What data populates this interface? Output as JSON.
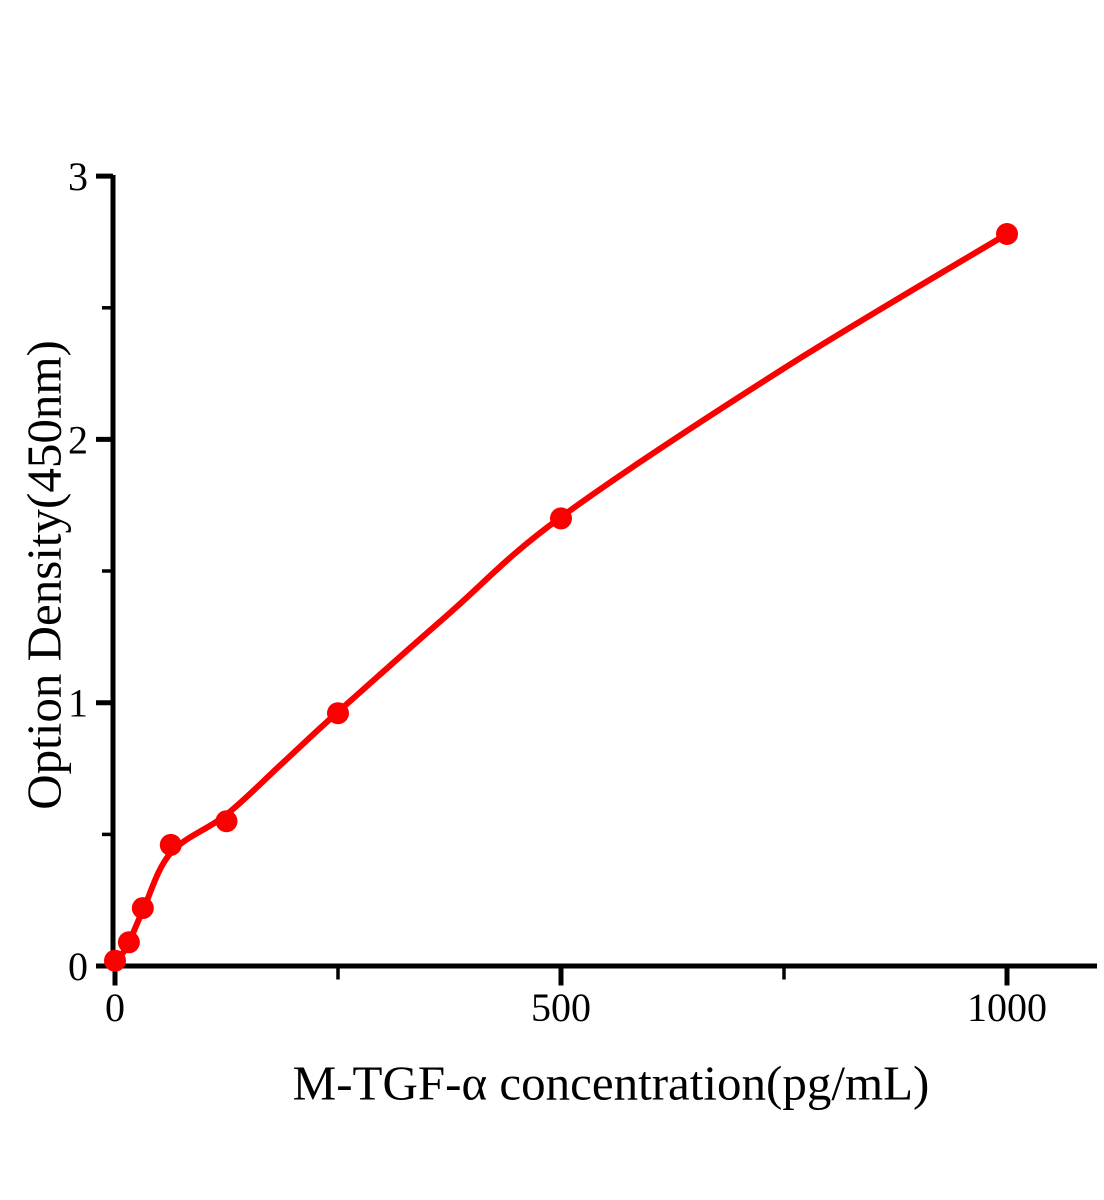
{
  "figure": {
    "background_color": "#ffffff",
    "axis_color": "#000000",
    "accent_color": "#fa0000"
  },
  "chart_data": {
    "type": "scatter",
    "title": "",
    "xlabel": "M-TGF-α concentration(pg/mL)",
    "ylabel": "Option Density(450nm)",
    "xlim": [
      0,
      1103
    ],
    "ylim": [
      0,
      3
    ],
    "grid": false,
    "legend": null,
    "x_major_ticks": [
      {
        "value": 0,
        "label": "0"
      },
      {
        "value": 500,
        "label": "500"
      },
      {
        "value": 1000,
        "label": "1000"
      }
    ],
    "x_minor_ticks": [
      250,
      750
    ],
    "y_major_ticks": [
      {
        "value": 0,
        "label": "0"
      },
      {
        "value": 1,
        "label": "1"
      },
      {
        "value": 2,
        "label": "2"
      },
      {
        "value": 3,
        "label": "3"
      }
    ],
    "y_minor_ticks": [
      0.5,
      1.5,
      2.5
    ],
    "series": [
      {
        "name": "standard-points",
        "type": "scatter",
        "marker": "circle",
        "color": "#fa0000",
        "points": [
          {
            "x": 0,
            "y": 0.02
          },
          {
            "x": 15.6,
            "y": 0.09
          },
          {
            "x": 31.2,
            "y": 0.22
          },
          {
            "x": 62.5,
            "y": 0.46
          },
          {
            "x": 125,
            "y": 0.55
          },
          {
            "x": 250,
            "y": 0.96
          },
          {
            "x": 500,
            "y": 1.7
          },
          {
            "x": 1000,
            "y": 2.78
          }
        ]
      },
      {
        "name": "fitted-curve",
        "type": "line",
        "color": "#fa0000",
        "points": [
          [
            0,
            0.0
          ],
          [
            15.6,
            0.09
          ],
          [
            31.2,
            0.21
          ],
          [
            62.5,
            0.43
          ],
          [
            125,
            0.575
          ],
          [
            187.5,
            0.77
          ],
          [
            250,
            0.965
          ],
          [
            375,
            1.34
          ],
          [
            500,
            1.705
          ],
          [
            750,
            2.27
          ],
          [
            1000,
            2.78
          ]
        ]
      }
    ]
  }
}
